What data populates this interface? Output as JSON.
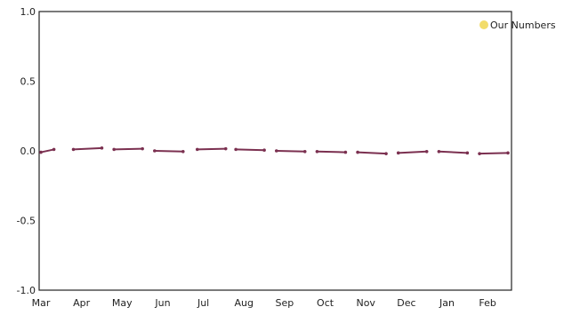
{
  "chart_data": {
    "type": "line",
    "title": "",
    "xlabel": "",
    "ylabel": "",
    "categories": [
      "Mar",
      "Apr",
      "May",
      "Jun",
      "Jul",
      "Aug",
      "Sep",
      "Oct",
      "Nov",
      "Dec",
      "Jan",
      "Feb"
    ],
    "yticks": [
      "1.0",
      "0.5",
      "0.0",
      "-0.5",
      "-1.0"
    ],
    "ylim": [
      -1.0,
      1.0
    ],
    "grid": false,
    "legend_position": "top-right",
    "series": [
      {
        "name": "Our Numbers",
        "legend_color": "#f2dc6a",
        "line_color": "#7b3050",
        "segments": [
          [
            [
              0.0,
              -0.01
            ],
            [
              0.32,
              0.01
            ]
          ],
          [
            [
              0.8,
              0.01
            ],
            [
              1.5,
              0.02
            ]
          ],
          [
            [
              1.8,
              0.01
            ],
            [
              2.5,
              0.015
            ]
          ],
          [
            [
              2.8,
              0.0
            ],
            [
              3.5,
              -0.005
            ]
          ],
          [
            [
              3.85,
              0.01
            ],
            [
              4.55,
              0.015
            ]
          ],
          [
            [
              4.8,
              0.01
            ],
            [
              5.5,
              0.005
            ]
          ],
          [
            [
              5.8,
              0.0
            ],
            [
              6.5,
              -0.005
            ]
          ],
          [
            [
              6.8,
              -0.005
            ],
            [
              7.5,
              -0.01
            ]
          ],
          [
            [
              7.8,
              -0.01
            ],
            [
              8.5,
              -0.02
            ]
          ],
          [
            [
              8.8,
              -0.015
            ],
            [
              9.5,
              -0.005
            ]
          ],
          [
            [
              9.8,
              -0.005
            ],
            [
              10.5,
              -0.015
            ]
          ],
          [
            [
              10.8,
              -0.02
            ],
            [
              11.5,
              -0.015
            ]
          ]
        ]
      }
    ]
  }
}
